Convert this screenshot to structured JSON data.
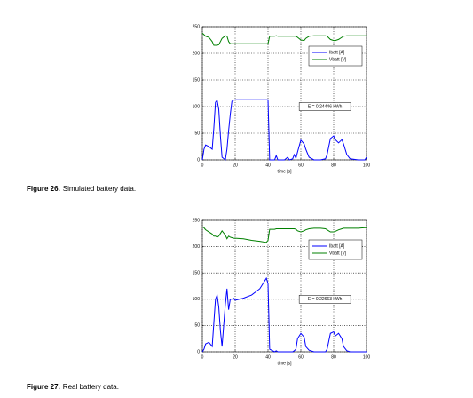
{
  "chart_data": [
    {
      "type": "line",
      "figure_label": "Figure 26.",
      "caption": "Simulated battery data.",
      "xlabel": "time [s]",
      "annotation": "E = 0.24446 kWh",
      "x": [
        0,
        1,
        2,
        4,
        6,
        7,
        8,
        9,
        10,
        11,
        12,
        14,
        15,
        16,
        17,
        18,
        19,
        20,
        25,
        30,
        35,
        39,
        40,
        41,
        44,
        45,
        46,
        50,
        52,
        53,
        55,
        56,
        57,
        58,
        60,
        62,
        63,
        65,
        68,
        72,
        75,
        76,
        78,
        80,
        81,
        83,
        85,
        86,
        88,
        90,
        95,
        99,
        100
      ],
      "series": [
        {
          "name": "Ibatt [A]",
          "color": "#0000ff",
          "values": [
            0,
            20,
            28,
            25,
            20,
            60,
            108,
            112,
            95,
            45,
            5,
            0,
            20,
            55,
            85,
            110,
            112,
            113,
            113,
            113,
            113,
            113,
            113,
            0,
            0,
            8,
            0,
            0,
            5,
            0,
            2,
            10,
            3,
            15,
            37,
            30,
            20,
            5,
            0,
            0,
            2,
            10,
            40,
            45,
            38,
            32,
            38,
            30,
            10,
            2,
            0,
            0,
            5
          ]
        },
        {
          "name": "Vbatt [V]",
          "color": "#008000",
          "values": [
            238,
            235,
            232,
            230,
            222,
            215,
            215,
            215,
            216,
            222,
            228,
            233,
            232,
            222,
            218,
            218,
            218,
            218,
            218,
            218,
            218,
            218,
            218,
            232,
            232,
            233,
            232,
            232,
            232,
            232,
            232,
            232,
            232,
            230,
            225,
            224,
            228,
            232,
            233,
            233,
            233,
            232,
            226,
            224,
            224,
            226,
            230,
            232,
            233,
            233,
            233,
            233,
            233
          ]
        }
      ],
      "xlim": [
        0,
        100
      ],
      "xticks": [
        0,
        20,
        40,
        60,
        80,
        100
      ],
      "ylim": [
        0,
        250
      ],
      "yticks": [
        0,
        50,
        100,
        150,
        200,
        250
      ],
      "grid": true,
      "legend": "upper right"
    },
    {
      "type": "line",
      "figure_label": "Figure 27.",
      "caption": "Real battery data.",
      "xlabel": "time [s]",
      "annotation": "E = 0.22663 kWh",
      "x": [
        0,
        1,
        2,
        4,
        6,
        7,
        8,
        9,
        10,
        11,
        12,
        14,
        15,
        16,
        17,
        18,
        19,
        20,
        25,
        30,
        35,
        39,
        40,
        41,
        44,
        45,
        46,
        50,
        52,
        53,
        55,
        56,
        57,
        58,
        60,
        62,
        63,
        65,
        68,
        72,
        75,
        76,
        78,
        80,
        81,
        83,
        85,
        86,
        88,
        90,
        95,
        99,
        100
      ],
      "series": [
        {
          "name": "Ibatt [A]",
          "color": "#0000ff",
          "values": [
            0,
            5,
            15,
            18,
            10,
            55,
            100,
            108,
            85,
            40,
            10,
            90,
            120,
            80,
            100,
            100,
            102,
            98,
            102,
            108,
            120,
            140,
            130,
            5,
            0,
            2,
            0,
            0,
            0,
            0,
            0,
            2,
            5,
            25,
            35,
            28,
            10,
            3,
            0,
            0,
            0,
            5,
            35,
            38,
            30,
            35,
            25,
            10,
            2,
            0,
            0,
            0,
            0
          ]
        },
        {
          "name": "Vbatt [V]",
          "color": "#008000",
          "values": [
            238,
            236,
            232,
            228,
            224,
            220,
            220,
            218,
            220,
            225,
            230,
            222,
            215,
            220,
            218,
            217,
            216,
            216,
            215,
            212,
            210,
            208,
            212,
            233,
            233,
            234,
            234,
            234,
            234,
            234,
            234,
            234,
            233,
            230,
            228,
            230,
            232,
            234,
            235,
            235,
            234,
            232,
            228,
            228,
            229,
            232,
            234,
            235,
            235,
            235,
            235,
            236,
            236
          ]
        }
      ],
      "xlim": [
        0,
        100
      ],
      "xticks": [
        0,
        20,
        40,
        60,
        80,
        100
      ],
      "ylim": [
        0,
        250
      ],
      "yticks": [
        0,
        50,
        100,
        150,
        200,
        250
      ],
      "grid": true,
      "legend": "upper right"
    }
  ]
}
